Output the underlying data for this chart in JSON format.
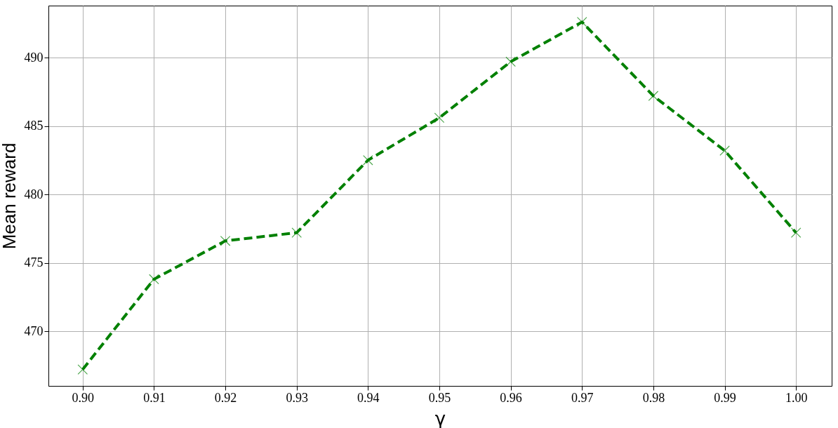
{
  "chart_data": {
    "type": "line",
    "xlabel": "γ",
    "ylabel": "Mean reward",
    "x": [
      0.9,
      0.91,
      0.92,
      0.93,
      0.94,
      0.95,
      0.96,
      0.97,
      0.98,
      0.99,
      1.0
    ],
    "series": [
      {
        "color": "#008000",
        "values": [
          467.2,
          473.8,
          476.6,
          477.2,
          482.5,
          485.6,
          489.7,
          492.6,
          487.2,
          483.2,
          477.2
        ]
      }
    ],
    "xlim": [
      0.8952,
      1.005
    ],
    "ylim": [
      466.0,
      493.8
    ],
    "xticks": [
      {
        "value": 0.9,
        "label": "0.90"
      },
      0.91,
      0.92,
      0.93,
      0.94,
      0.95,
      0.96,
      0.97,
      0.98,
      0.99,
      {
        "value": 1.0,
        "label": "1.00"
      }
    ],
    "yticks": [
      470,
      475,
      480,
      485,
      490
    ],
    "grid": true,
    "marker": "cross",
    "line_style": "dashed"
  }
}
